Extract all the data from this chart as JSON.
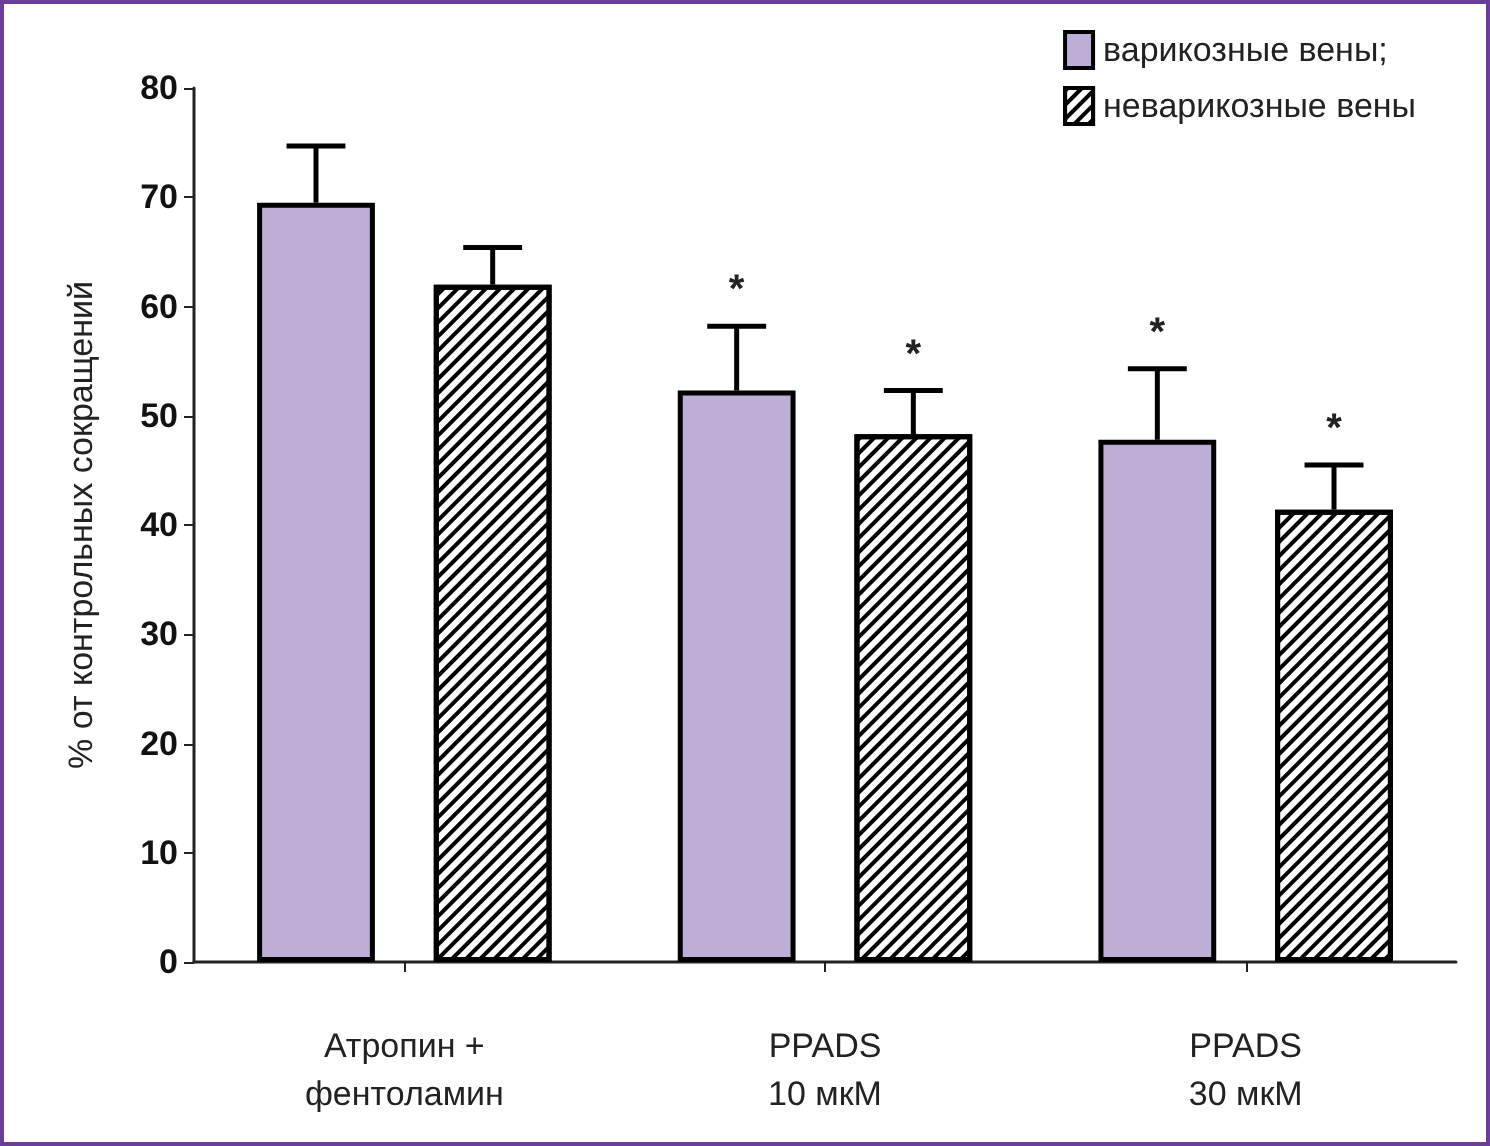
{
  "chart_data": {
    "type": "bar",
    "ylabel": "% от контрольных сокращений",
    "categories": [
      "Атропин +\nфентоламин",
      "PPADS\n10 мкМ",
      "PPADS\n30 мкМ"
    ],
    "series": [
      {
        "name": "варикозные вены;",
        "color": "#bcaed4",
        "values": [
          69.5,
          52.3,
          47.8
        ],
        "errors": [
          [
            69.5,
            74.7
          ],
          [
            52.3,
            58.2
          ],
          [
            47.8,
            54.3
          ]
        ],
        "value_labels": [
          null,
          "*",
          "*"
        ]
      },
      {
        "name": "неварикозные вены",
        "color": "#ffffff",
        "values": [
          62.0,
          48.3,
          41.4
        ],
        "errors": [
          [
            62.0,
            65.4
          ],
          [
            48.3,
            52.3
          ],
          [
            41.4,
            45.5
          ]
        ],
        "value_labels": [
          null,
          "*",
          "*"
        ]
      }
    ],
    "ylim": [
      0,
      80
    ],
    "yticks": [
      0,
      10,
      20,
      30,
      40,
      50,
      60,
      70,
      80
    ],
    "grid": false,
    "legend": "top right"
  }
}
